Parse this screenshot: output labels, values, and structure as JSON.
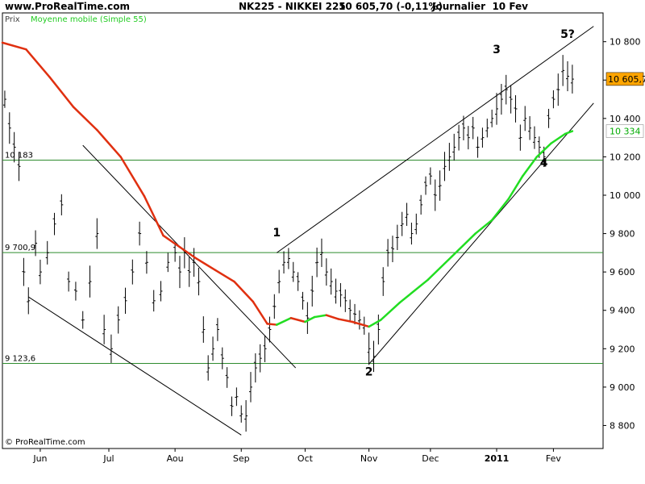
{
  "header": {
    "site": "www.ProRealTime.com",
    "instrument": "NK225 - NIKKEI 225",
    "quote": "10 605,70 (-0,11%)",
    "period": "Journalier  10 Fev"
  },
  "footer": {
    "copyright": "© ProRealTime.com"
  },
  "colors": {
    "ma_down": "#e03010",
    "ma_up": "#22dd22",
    "hline": "#2e8b2e",
    "price_tag": "#ffa500",
    "ma_tag_text": "#00aa00"
  },
  "chart_data": {
    "type": "bar",
    "title": "NK225 - NIKKEI 225",
    "price_label": "Prix",
    "ma_label": "Moyenne mobile (Simple 55)",
    "ylim": [
      8680,
      10950
    ],
    "xlim_days": [
      0,
      254
    ],
    "y_ticks": [
      "8 800",
      "9 000",
      "9 200",
      "9 400",
      "9 600",
      "9 800",
      "10 000",
      "10 200",
      "10 400",
      "10 600",
      "10 800"
    ],
    "y_tick_values": [
      8800,
      9000,
      9200,
      9400,
      9600,
      9800,
      10000,
      10200,
      10400,
      10600,
      10800
    ],
    "x_ticks": [
      {
        "label": "Jun",
        "d": 16
      },
      {
        "label": "Jul",
        "d": 45
      },
      {
        "label": "Aou",
        "d": 73
      },
      {
        "label": "Sep",
        "d": 101
      },
      {
        "label": "Oct",
        "d": 128
      },
      {
        "label": "Nov",
        "d": 155
      },
      {
        "label": "Dec",
        "d": 181
      },
      {
        "label": "2011",
        "d": 209
      },
      {
        "label": "Fev",
        "d": 233
      }
    ],
    "hlines": [
      {
        "value": 10183,
        "label": "10 183"
      },
      {
        "value": 9700.9,
        "label": "9 700,9"
      },
      {
        "value": 9123.6,
        "label": "9 123,6"
      }
    ],
    "price_tag": "10 605,7",
    "ma_tag": "10 334",
    "price_last": 10605.7,
    "ma_last": 10334,
    "series": [
      {
        "name": "Moyenne mobile (Simple 55)",
        "type": "line",
        "points": [
          [
            0,
            10795
          ],
          [
            10,
            10760
          ],
          [
            20,
            10615
          ],
          [
            30,
            10460
          ],
          [
            40,
            10340
          ],
          [
            50,
            10200
          ],
          [
            60,
            9995
          ],
          [
            68,
            9790
          ],
          [
            75,
            9730
          ],
          [
            82,
            9670
          ],
          [
            90,
            9610
          ],
          [
            98,
            9550
          ],
          [
            106,
            9445
          ],
          [
            112,
            9330
          ],
          [
            116,
            9325
          ],
          [
            122,
            9360
          ],
          [
            128,
            9340
          ],
          [
            132,
            9365
          ],
          [
            137,
            9375
          ],
          [
            142,
            9355
          ],
          [
            148,
            9340
          ],
          [
            155,
            9315
          ],
          [
            160,
            9350
          ],
          [
            168,
            9440
          ],
          [
            180,
            9560
          ],
          [
            190,
            9680
          ],
          [
            200,
            9800
          ],
          [
            207,
            9870
          ],
          [
            214,
            9980
          ],
          [
            220,
            10100
          ],
          [
            226,
            10200
          ],
          [
            232,
            10270
          ],
          [
            238,
            10320
          ],
          [
            241,
            10334
          ]
        ]
      },
      {
        "name": "Prix",
        "type": "ohlc",
        "points": [
          [
            1,
            10500
          ],
          [
            3,
            10350
          ],
          [
            5,
            10250
          ],
          [
            7,
            10150
          ],
          [
            9,
            9600
          ],
          [
            11,
            9450
          ],
          [
            14,
            9750
          ],
          [
            16,
            9600
          ],
          [
            19,
            9700
          ],
          [
            22,
            9850
          ],
          [
            25,
            9950
          ],
          [
            28,
            9550
          ],
          [
            31,
            9500
          ],
          [
            34,
            9350
          ],
          [
            37,
            9550
          ],
          [
            40,
            9800
          ],
          [
            43,
            9300
          ],
          [
            46,
            9200
          ],
          [
            49,
            9350
          ],
          [
            52,
            9450
          ],
          [
            55,
            9600
          ],
          [
            58,
            9800
          ],
          [
            61,
            9650
          ],
          [
            64,
            9450
          ],
          [
            67,
            9500
          ],
          [
            70,
            9650
          ],
          [
            73,
            9700
          ],
          [
            75,
            9600
          ],
          [
            77,
            9700
          ],
          [
            79,
            9600
          ],
          [
            81,
            9650
          ],
          [
            83,
            9550
          ],
          [
            85,
            9300
          ],
          [
            87,
            9100
          ],
          [
            89,
            9200
          ],
          [
            91,
            9300
          ],
          [
            93,
            9150
          ],
          [
            95,
            9050
          ],
          [
            97,
            8900
          ],
          [
            99,
            8950
          ],
          [
            101,
            8860
          ],
          [
            103,
            8850
          ],
          [
            105,
            9000
          ],
          [
            107,
            9100
          ],
          [
            109,
            9150
          ],
          [
            111,
            9200
          ],
          [
            113,
            9300
          ],
          [
            115,
            9420
          ],
          [
            117,
            9550
          ],
          [
            119,
            9650
          ],
          [
            121,
            9670
          ],
          [
            123,
            9600
          ],
          [
            125,
            9550
          ],
          [
            127,
            9450
          ],
          [
            129,
            9360
          ],
          [
            131,
            9500
          ],
          [
            133,
            9650
          ],
          [
            135,
            9700
          ],
          [
            137,
            9600
          ],
          [
            139,
            9550
          ],
          [
            141,
            9500
          ],
          [
            143,
            9480
          ],
          [
            145,
            9450
          ],
          [
            147,
            9400
          ],
          [
            149,
            9380
          ],
          [
            151,
            9350
          ],
          [
            153,
            9320
          ],
          [
            155,
            9200
          ],
          [
            157,
            9160
          ],
          [
            159,
            9300
          ],
          [
            161,
            9550
          ],
          [
            163,
            9700
          ],
          [
            165,
            9720
          ],
          [
            167,
            9780
          ],
          [
            169,
            9850
          ],
          [
            171,
            9900
          ],
          [
            173,
            9800
          ],
          [
            175,
            9850
          ],
          [
            177,
            9950
          ],
          [
            179,
            10050
          ],
          [
            181,
            10100
          ],
          [
            183,
            10000
          ],
          [
            185,
            10050
          ],
          [
            187,
            10150
          ],
          [
            189,
            10200
          ],
          [
            191,
            10250
          ],
          [
            193,
            10300
          ],
          [
            195,
            10350
          ],
          [
            197,
            10300
          ],
          [
            199,
            10350
          ],
          [
            201,
            10250
          ],
          [
            203,
            10300
          ],
          [
            205,
            10350
          ],
          [
            207,
            10400
          ],
          [
            209,
            10450
          ],
          [
            211,
            10500
          ],
          [
            213,
            10550
          ],
          [
            215,
            10500
          ],
          [
            217,
            10450
          ],
          [
            219,
            10300
          ],
          [
            221,
            10400
          ],
          [
            223,
            10350
          ],
          [
            225,
            10300
          ],
          [
            227,
            10250
          ],
          [
            229,
            10200
          ],
          [
            231,
            10400
          ],
          [
            233,
            10500
          ],
          [
            235,
            10550
          ],
          [
            237,
            10650
          ],
          [
            239,
            10620
          ],
          [
            241,
            10605
          ]
        ]
      }
    ],
    "trendlines": [
      {
        "name": "upper-wedge",
        "from": [
          116,
          9700
        ],
        "to": [
          250,
          10880
        ]
      },
      {
        "name": "lower-wedge",
        "from": [
          155,
          9120
        ],
        "to": [
          250,
          10480
        ]
      },
      {
        "name": "down-upper",
        "from": [
          34,
          10260
        ],
        "to": [
          124,
          9100
        ]
      },
      {
        "name": "down-lower",
        "from": [
          11,
          9470
        ],
        "to": [
          101,
          8750
        ]
      }
    ],
    "wave_labels": [
      {
        "text": "1",
        "d": 116,
        "v": 9785
      },
      {
        "text": "2",
        "d": 155,
        "v": 9060
      },
      {
        "text": "3",
        "d": 209,
        "v": 10740
      },
      {
        "text": "4",
        "d": 229,
        "v": 10150
      },
      {
        "text": "5?",
        "d": 239,
        "v": 10820
      }
    ]
  }
}
